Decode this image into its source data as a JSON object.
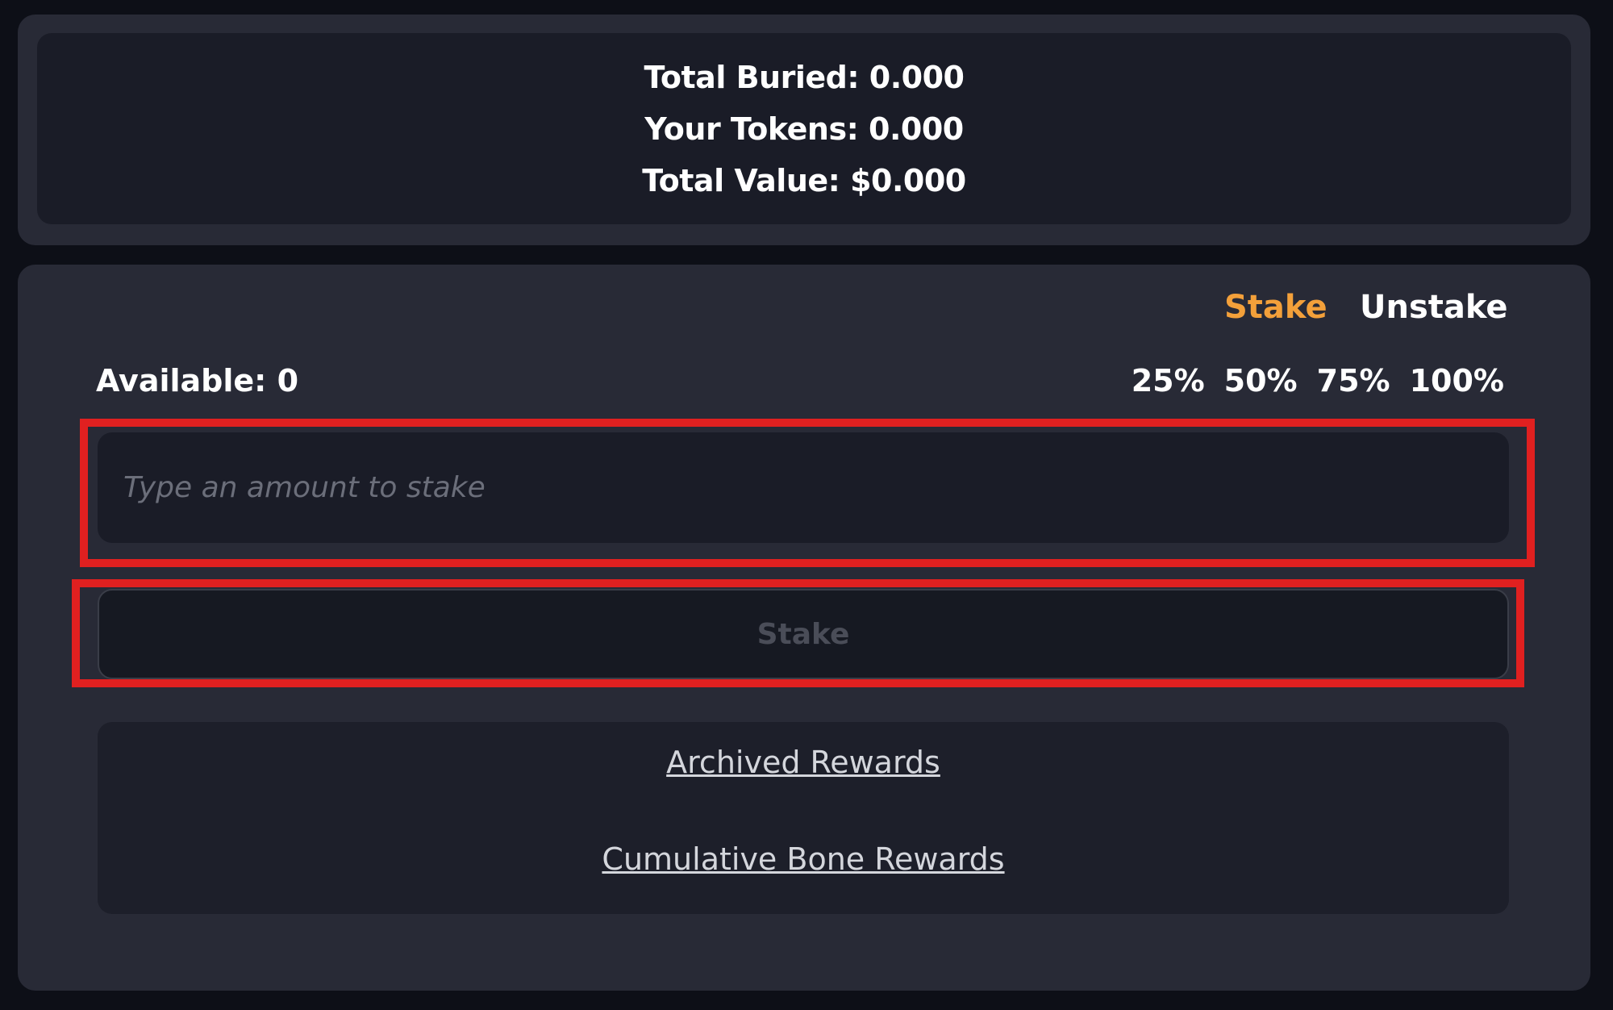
{
  "stats": {
    "total_buried": "Total Buried: 0.000",
    "your_tokens": "Your Tokens: 0.000",
    "total_value": "Total Value: $0.000"
  },
  "tabs": {
    "stake": "Stake",
    "unstake": "Unstake",
    "active": "stake"
  },
  "available": "Available: 0",
  "percentages": [
    "25%",
    "50%",
    "75%",
    "100%"
  ],
  "amount_input": {
    "value": "",
    "placeholder": "Type an amount to stake"
  },
  "stake_button": "Stake",
  "links": {
    "archived": "Archived Rewards",
    "cumulative": "Cumulative Bone Rewards"
  },
  "colors": {
    "accent": "#f3a03a",
    "highlight": "#e02020",
    "panel": "#282a36",
    "card": "#1a1c27",
    "background": "#0d0f17"
  }
}
